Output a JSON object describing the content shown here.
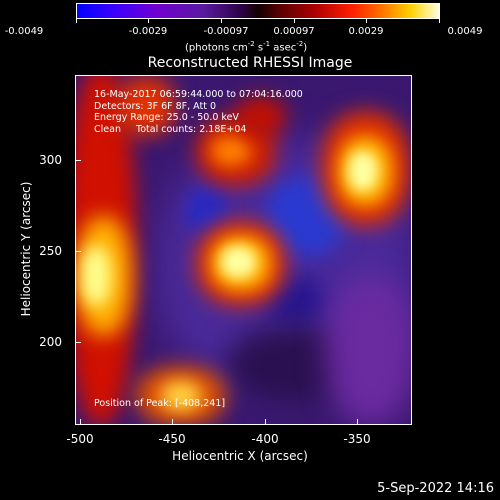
{
  "colorbar": {
    "ticks": [
      "-0.0049",
      "-0.0029",
      "-0.00097",
      "0.00097",
      "0.0029",
      "0.0049"
    ],
    "units_prefix": "(photons cm",
    "units_exp1": "-2",
    "units_mid": " s",
    "units_exp2": "-1",
    "units_mid2": " asec",
    "units_exp3": "-2",
    "units_suffix": ")"
  },
  "title": "Reconstructed RHESSI Image",
  "info": {
    "line1": "16-May-2017 06:59:44.000 to 07:04:16.000",
    "line2": "Detectors: 3F 6F 8F, Att 0",
    "line3": "Energy Range: 25.0 - 50.0 keV",
    "line4": "Clean     Total counts: 2.18E+04"
  },
  "peak": "Position of Peak: [-408,241]",
  "x_axis": {
    "label": "Heliocentric X (arcsec)",
    "ticks": [
      "-500",
      "-450",
      "-400",
      "-350"
    ]
  },
  "y_axis": {
    "label": "Heliocentric Y (arcsec)",
    "ticks": [
      "300",
      "250",
      "200"
    ]
  },
  "timestamp": "5-Sep-2022 14:16"
}
